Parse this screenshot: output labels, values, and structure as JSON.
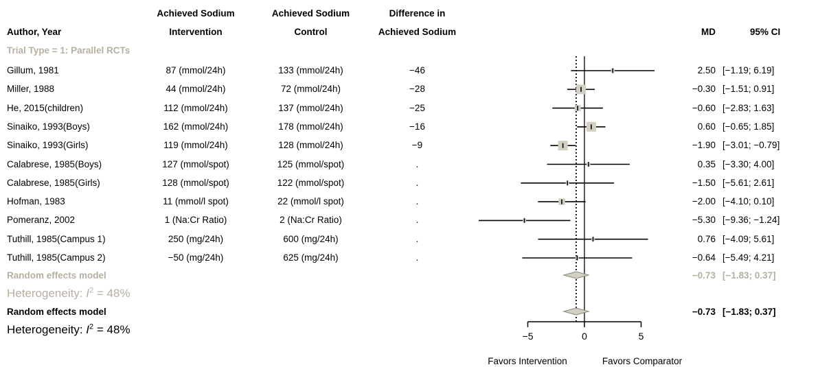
{
  "headers": {
    "author": "Author, Year",
    "intervention_line1": "Achieved Sodium",
    "intervention_line2": "Intervention",
    "control_line1": "Achieved Sodium",
    "control_line2": "Control",
    "difference_line1": "Difference in",
    "difference_line2": "Achieved Sodium",
    "md": "MD",
    "ci": "95% CI"
  },
  "subgroup_label": "Trial Type = 1: Parallel RCTs",
  "studies": [
    {
      "author": "Gillum, 1981",
      "intervention": "87 (mmol/24h)",
      "control": "133 (mmol/24h)",
      "difference": "−46",
      "md_text": "2.50",
      "ci_text": "[−1.19; 6.19]"
    },
    {
      "author": "Miller, 1988",
      "intervention": "44 (mmol/24h)",
      "control": "72 (mmol/24h)",
      "difference": "−28",
      "md_text": "−0.30",
      "ci_text": "[−1.51; 0.91]"
    },
    {
      "author": "He, 2015(children)",
      "intervention": "112 (mmol/24h)",
      "control": "137 (mmol/24h)",
      "difference": "−25",
      "md_text": "−0.60",
      "ci_text": "[−2.83; 1.63]"
    },
    {
      "author": "Sinaiko, 1993(Boys)",
      "intervention": "162 (mmol/24h)",
      "control": "178 (mmol/24h)",
      "difference": "−16",
      "md_text": "0.60",
      "ci_text": "[−0.65; 1.85]"
    },
    {
      "author": "Sinaiko, 1993(Girls)",
      "intervention": "119 (mmol/24h)",
      "control": "128 (mmol/24h)",
      "difference": "−9",
      "md_text": "−1.90",
      "ci_text": "[−3.01; −0.79]"
    },
    {
      "author": "Calabrese, 1985(Boys)",
      "intervention": "127 (mmol/spot)",
      "control": "125 (mmol/spot)",
      "difference": ".",
      "md_text": "0.35",
      "ci_text": "[−3.30; 4.00]"
    },
    {
      "author": "Calabrese, 1985(Girls)",
      "intervention": "128 (mmol/spot)",
      "control": "122 (mmol/spot)",
      "difference": ".",
      "md_text": "−1.50",
      "ci_text": "[−5.61; 2.61]"
    },
    {
      "author": "Hofman, 1983",
      "intervention": "11 (mmol/l spot)",
      "control": "22 (mmol/l spot)",
      "difference": ".",
      "md_text": "−2.00",
      "ci_text": "[−4.10; 0.10]"
    },
    {
      "author": "Pomeranz, 2002",
      "intervention": "1 (Na:Cr Ratio)",
      "control": "2 (Na:Cr Ratio)",
      "difference": ".",
      "md_text": "−5.30",
      "ci_text": "[−9.36; −1.24]"
    },
    {
      "author": "Tuthill, 1985(Campus 1)",
      "intervention": "250 (mg/24h)",
      "control": "600 (mg/24h)",
      "difference": ".",
      "md_text": "0.76",
      "ci_text": "[−4.09; 5.61]"
    },
    {
      "author": "Tuthill, 1985(Campus 2)",
      "intervention": "−50 (mg/24h)",
      "control": "625 (mg/24h)",
      "difference": ".",
      "md_text": "−0.64",
      "ci_text": "[−5.49; 4.21]"
    }
  ],
  "subgroup_model": {
    "label": "Random effects model",
    "md_text": "−0.73",
    "ci_text": "[−1.83; 0.37]",
    "het_prefix": "Heterogeneity: ",
    "het_symbol": "I",
    "het_sup": "2",
    "het_value": " = 48%"
  },
  "overall_model": {
    "label": "Random effects model",
    "md_text": "−0.73",
    "ci_text": "[−1.83; 0.37]",
    "het_prefix": "Heterogeneity: ",
    "het_symbol": "I",
    "het_sup": "2",
    "het_value": " = 48%"
  },
  "colors": {
    "text": "#000000",
    "subgroup_grey": "#b5b09f",
    "square_fill": "#d3cfc2",
    "diamond_fill": "#d3cfc2"
  },
  "chart_data": {
    "type": "forest",
    "xlim": [
      -5,
      5
    ],
    "ticks": [
      -5,
      0,
      5
    ],
    "tick_labels": [
      "−5",
      "0",
      "5"
    ],
    "null_line": 0,
    "summary_line": -0.73,
    "xlabel_left": "Favors Intervention",
    "xlabel_right": "Favors Comparator",
    "studies": [
      {
        "name": "Gillum, 1981",
        "md": 2.5,
        "lower": -1.19,
        "upper": 6.19
      },
      {
        "name": "Miller, 1988",
        "md": -0.3,
        "lower": -1.51,
        "upper": 0.91
      },
      {
        "name": "He, 2015(children)",
        "md": -0.6,
        "lower": -2.83,
        "upper": 1.63
      },
      {
        "name": "Sinaiko, 1993(Boys)",
        "md": 0.6,
        "lower": -0.65,
        "upper": 1.85
      },
      {
        "name": "Sinaiko, 1993(Girls)",
        "md": -1.9,
        "lower": -3.01,
        "upper": -0.79
      },
      {
        "name": "Calabrese, 1985(Boys)",
        "md": 0.35,
        "lower": -3.3,
        "upper": 4.0
      },
      {
        "name": "Calabrese, 1985(Girls)",
        "md": -1.5,
        "lower": -5.61,
        "upper": 2.61
      },
      {
        "name": "Hofman, 1983",
        "md": -2.0,
        "lower": -4.1,
        "upper": 0.1
      },
      {
        "name": "Pomeranz, 2002",
        "md": -5.3,
        "lower": -9.36,
        "upper": -1.24
      },
      {
        "name": "Tuthill, 1985(Campus 1)",
        "md": 0.76,
        "lower": -4.09,
        "upper": 5.61
      },
      {
        "name": "Tuthill, 1985(Campus 2)",
        "md": -0.64,
        "lower": -5.49,
        "upper": 4.21
      }
    ],
    "pooled": [
      {
        "name": "Random effects model (subgroup)",
        "md": -0.73,
        "lower": -1.83,
        "upper": 0.37
      },
      {
        "name": "Random effects model (overall)",
        "md": -0.73,
        "lower": -1.83,
        "upper": 0.37
      }
    ]
  }
}
